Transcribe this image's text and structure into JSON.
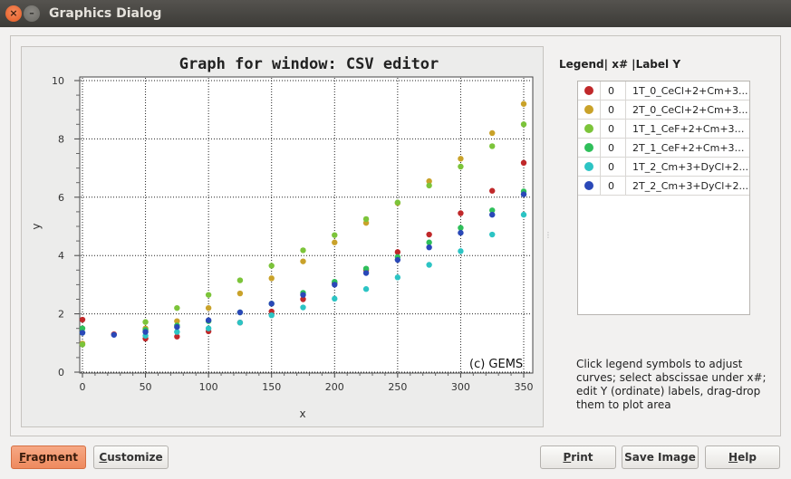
{
  "window": {
    "title": "Graphics Dialog",
    "close_glyph": "×",
    "minimize_glyph": "–"
  },
  "chart_data": {
    "type": "scatter",
    "title": "Graph for window: CSV editor",
    "xlabel": "x",
    "ylabel": "y",
    "xlim": [
      0,
      355
    ],
    "ylim": [
      0,
      10.2
    ],
    "xticks": [
      0,
      50,
      100,
      150,
      200,
      250,
      300,
      350
    ],
    "yticks": [
      0,
      2,
      4,
      6,
      8,
      10
    ],
    "grid": true,
    "annotation": "(c) GEMS",
    "series": [
      {
        "name": "1T_0_CeCl+2+Cm+3...",
        "color": "#c0282a",
        "x": [
          0,
          25,
          50,
          75,
          100,
          125,
          150,
          175,
          200,
          225,
          250,
          275,
          300,
          325,
          350
        ],
        "y": [
          1.8,
          1.3,
          1.15,
          1.22,
          1.4,
          1.7,
          2.08,
          2.5,
          3.05,
          3.5,
          4.12,
          4.72,
          5.45,
          6.22,
          7.18
        ]
      },
      {
        "name": "2T_0_CeCl+2+Cm+3...",
        "color": "#c9a22a",
        "x": [
          0,
          50,
          75,
          100,
          125,
          150,
          175,
          200,
          225,
          250,
          275,
          300,
          325,
          350
        ],
        "y": [
          0.98,
          1.5,
          1.75,
          2.2,
          2.7,
          3.22,
          3.8,
          4.45,
          5.12,
          5.8,
          6.55,
          7.32,
          8.2,
          9.2
        ]
      },
      {
        "name": "1T_1_CeF+2+Cm+3+...",
        "color": "#7cc43a",
        "x": [
          0,
          50,
          75,
          100,
          125,
          150,
          175,
          200,
          225,
          250,
          275,
          300,
          325,
          350
        ],
        "y": [
          0.95,
          1.72,
          2.2,
          2.65,
          3.15,
          3.65,
          4.18,
          4.7,
          5.25,
          5.82,
          6.4,
          7.05,
          7.75,
          8.5
        ]
      },
      {
        "name": "2T_1_CeF+2+Cm+3+...",
        "color": "#2fbf5a",
        "x": [
          0,
          50,
          75,
          100,
          125,
          150,
          175,
          200,
          225,
          250,
          275,
          300,
          325,
          350
        ],
        "y": [
          1.5,
          1.45,
          1.6,
          1.75,
          2.05,
          2.35,
          2.72,
          3.1,
          3.55,
          3.95,
          4.45,
          4.95,
          5.55,
          6.2
        ]
      },
      {
        "name": "1T_2_Cm+3+DyCl+2...",
        "color": "#2cc4c4",
        "x": [
          0,
          50,
          75,
          100,
          125,
          150,
          175,
          200,
          225,
          250,
          275,
          300,
          325,
          350
        ],
        "y": [
          1.35,
          1.25,
          1.38,
          1.5,
          1.7,
          1.95,
          2.22,
          2.52,
          2.85,
          3.25,
          3.68,
          4.15,
          4.72,
          5.4
        ]
      },
      {
        "name": "2T_2_Cm+3+DyCl+2...",
        "color": "#2a48b8",
        "x": [
          0,
          25,
          50,
          75,
          100,
          125,
          150,
          175,
          200,
          225,
          250,
          275,
          300,
          325,
          350
        ],
        "y": [
          1.35,
          1.28,
          1.38,
          1.55,
          1.78,
          2.05,
          2.35,
          2.65,
          3.0,
          3.4,
          3.85,
          4.28,
          4.78,
          5.4,
          6.1
        ]
      }
    ]
  },
  "legend": {
    "header": "Legend| x# |Label Y",
    "rows": [
      {
        "x": "0",
        "label": "1T_0_CeCl+2+Cm+3...",
        "color": "#c0282a"
      },
      {
        "x": "0",
        "label": "2T_0_CeCl+2+Cm+3...",
        "color": "#c9a22a"
      },
      {
        "x": "0",
        "label": "1T_1_CeF+2+Cm+3+...",
        "color": "#7cc43a"
      },
      {
        "x": "0",
        "label": "2T_1_CeF+2+Cm+3+...",
        "color": "#2fbf5a"
      },
      {
        "x": "0",
        "label": "1T_2_Cm+3+DyCl+2...",
        "color": "#2cc4c4"
      },
      {
        "x": "0",
        "label": "2T_2_Cm+3+DyCl+2...",
        "color": "#2a48b8"
      }
    ]
  },
  "help_text": "Click legend symbols to adjust curves; select abscissae under x#; edit Y (ordinate) labels, drag-drop them to plot area",
  "buttons": {
    "fragment": {
      "mn": "F",
      "rest": "ragment"
    },
    "customize": {
      "mn": "C",
      "rest": "ustomize"
    },
    "print": {
      "pre": "",
      "mn": "P",
      "rest": "rint"
    },
    "save": "Save Image",
    "help": {
      "mn": "H",
      "rest": "elp"
    }
  }
}
